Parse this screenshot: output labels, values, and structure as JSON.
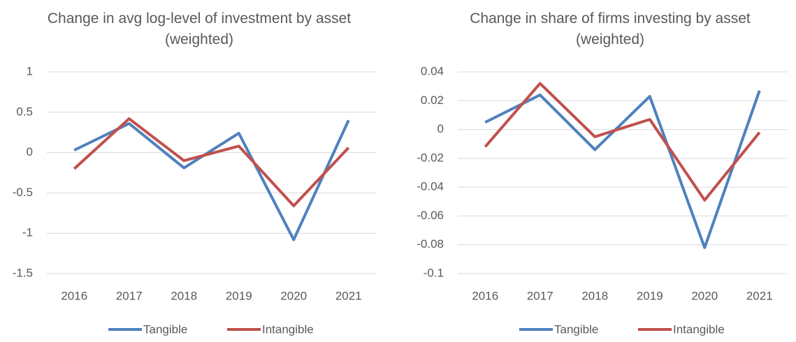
{
  "chart_data": [
    {
      "type": "line",
      "title": "Change in avg log-level of investment by asset (weighted)",
      "categories": [
        "2016",
        "2017",
        "2018",
        "2019",
        "2020",
        "2021"
      ],
      "series": [
        {
          "name": "Tangible",
          "color": "#4f81bd",
          "values": [
            0.03,
            0.36,
            -0.19,
            0.24,
            -1.08,
            0.4
          ]
        },
        {
          "name": "Intangible",
          "color": "#c0504d",
          "values": [
            -0.2,
            0.42,
            -0.1,
            0.08,
            -0.66,
            0.06
          ]
        }
      ],
      "ylim": [
        -1.5,
        1
      ],
      "yticks": [
        -1.5,
        -1,
        -0.5,
        0,
        0.5,
        1
      ],
      "grid": true,
      "legend": "bottom"
    },
    {
      "type": "line",
      "title": "Change in share of firms investing by asset (weighted)",
      "categories": [
        "2016",
        "2017",
        "2018",
        "2019",
        "2020",
        "2021"
      ],
      "series": [
        {
          "name": "Tangible",
          "color": "#4f81bd",
          "values": [
            0.005,
            0.024,
            -0.014,
            0.023,
            -0.082,
            0.027
          ]
        },
        {
          "name": "Intangible",
          "color": "#c0504d",
          "values": [
            -0.012,
            0.032,
            -0.005,
            0.007,
            -0.049,
            -0.002
          ]
        }
      ],
      "ylim": [
        -0.1,
        0.04
      ],
      "yticks": [
        -0.1,
        -0.08,
        -0.06,
        -0.04,
        -0.02,
        0,
        0.02,
        0.04
      ],
      "grid": true,
      "legend": "bottom"
    }
  ]
}
